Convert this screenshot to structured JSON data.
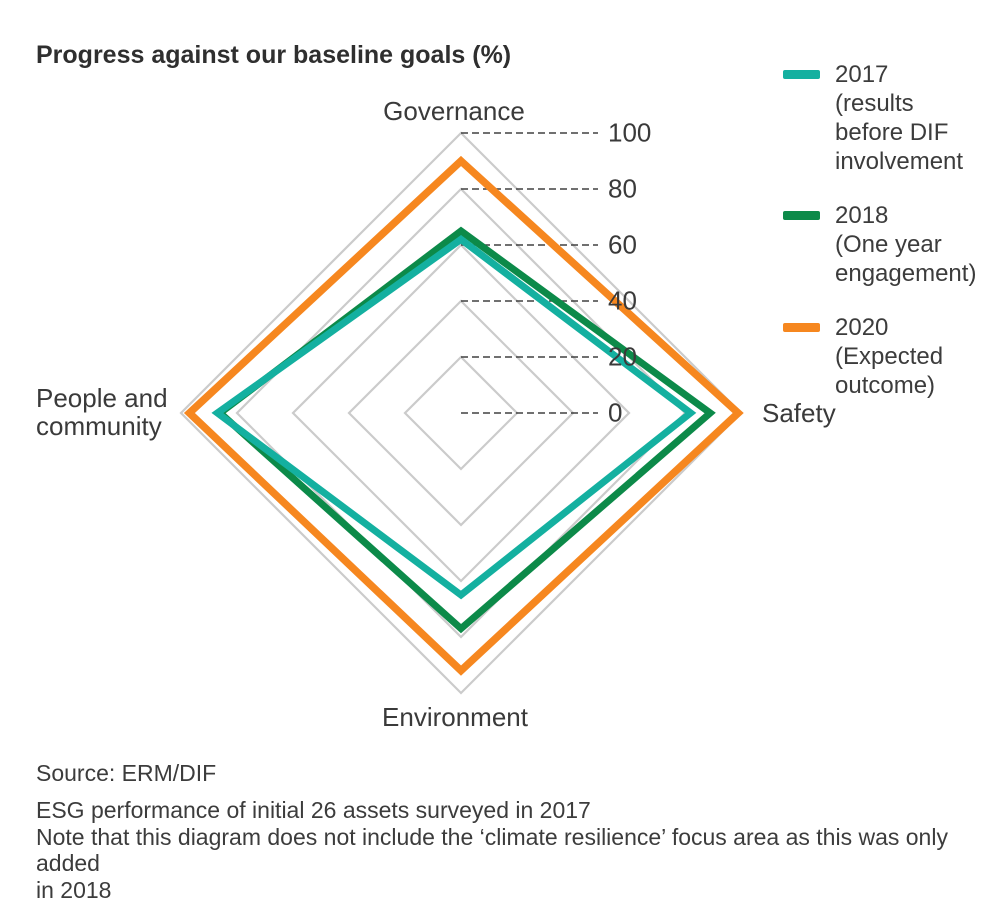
{
  "title": "Progress against our baseline goals (%)",
  "chart_data": {
    "type": "radar",
    "title": "Progress against our baseline goals (%)",
    "axes": [
      "Governance",
      "Safety",
      "Environment",
      "People and community"
    ],
    "axis_range": [
      0,
      100
    ],
    "rings": [
      20,
      40,
      60,
      80,
      100
    ],
    "ticks": [
      100,
      80,
      60,
      40,
      20,
      0
    ],
    "unit_suffix": "%",
    "grid_color": "#cbcbcb",
    "leader_color": "#404040",
    "legend_position": "top-right",
    "series": [
      {
        "name": "2017",
        "desc": "(results\nbefore DIF\ninvolvement",
        "color": "#14b0a0",
        "values": [
          62,
          82,
          65,
          87
        ]
      },
      {
        "name": "2018",
        "desc": "(One year\nengagement)",
        "color": "#0c8a49",
        "values": [
          65,
          89,
          77,
          86
        ]
      },
      {
        "name": "2020",
        "desc": "(Expected\noutcome)",
        "color": "#f6871f",
        "values": [
          90,
          99,
          92,
          97
        ]
      }
    ]
  },
  "footer": {
    "source": "Source: ERM/DIF",
    "notes": "ESG performance of initial 26 assets surveyed in 2017\nNote that this diagram does not include the ‘climate resilience’ focus area as this was only added\nin 2018"
  }
}
